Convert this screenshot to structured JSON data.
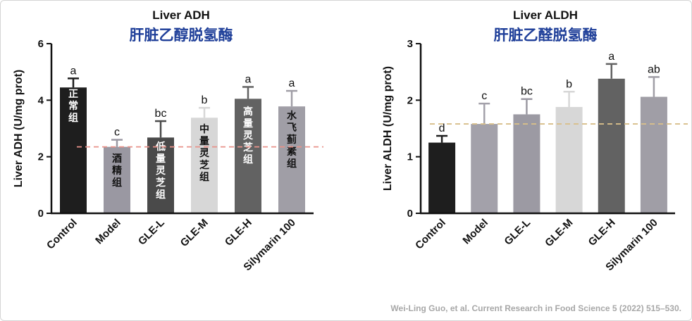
{
  "chart_data": [
    {
      "type": "bar",
      "title": "Liver ADH",
      "subtitle": "肝脏乙醇脱氢酶",
      "ylabel": "Liver ADH (U/mg prot)",
      "xlabel": "",
      "ylim": [
        0,
        6
      ],
      "yticks": [
        "0",
        "2",
        "4",
        "6"
      ],
      "categories": [
        "Control",
        "Model",
        "GLE-L",
        "GLE-M",
        "GLE-H",
        "Silymarin 100"
      ],
      "values": [
        4.45,
        2.35,
        2.68,
        3.38,
        4.05,
        3.78
      ],
      "errors": [
        0.32,
        0.25,
        0.58,
        0.35,
        0.42,
        0.55
      ],
      "letters": [
        "a",
        "c",
        "bc",
        "b",
        "a",
        "a"
      ],
      "bar_labels": [
        "正常组",
        "酒精组",
        "低量灵芝组",
        "中量灵芝组",
        "高量灵芝组",
        "水飞蓟素组"
      ],
      "colors": [
        "#1e1e1e",
        "#9a98a2",
        "#4a4a4a",
        "#d7d7d7",
        "#626262",
        "#a09ea6"
      ],
      "reference_line": 2.35,
      "reference_color": "#e8928a"
    },
    {
      "type": "bar",
      "title": "Liver ALDH",
      "subtitle": "肝脏乙醛脱氢酶",
      "ylabel": "Liver ALDH (U/mg prot)",
      "xlabel": "",
      "ylim": [
        0,
        3
      ],
      "yticks": [
        "0",
        "1",
        "2",
        "3"
      ],
      "categories": [
        "Control",
        "Model",
        "GLE-L",
        "GLE-M",
        "GLE-H",
        "Silymarin 100"
      ],
      "values": [
        1.25,
        1.58,
        1.75,
        1.88,
        2.38,
        2.06
      ],
      "errors": [
        0.12,
        0.36,
        0.27,
        0.27,
        0.26,
        0.35
      ],
      "letters": [
        "d",
        "c",
        "bc",
        "b",
        "a",
        "ab"
      ],
      "colors": [
        "#1e1e1e",
        "#a3a1aa",
        "#9c9aa3",
        "#d7d7d7",
        "#626262",
        "#a09ea6"
      ],
      "reference_line": 1.58,
      "reference_color": "#d8bf8a"
    }
  ],
  "citation": "Wei-Ling Guo, et al. Current Research in Food Science 5 (2022) 515–530."
}
